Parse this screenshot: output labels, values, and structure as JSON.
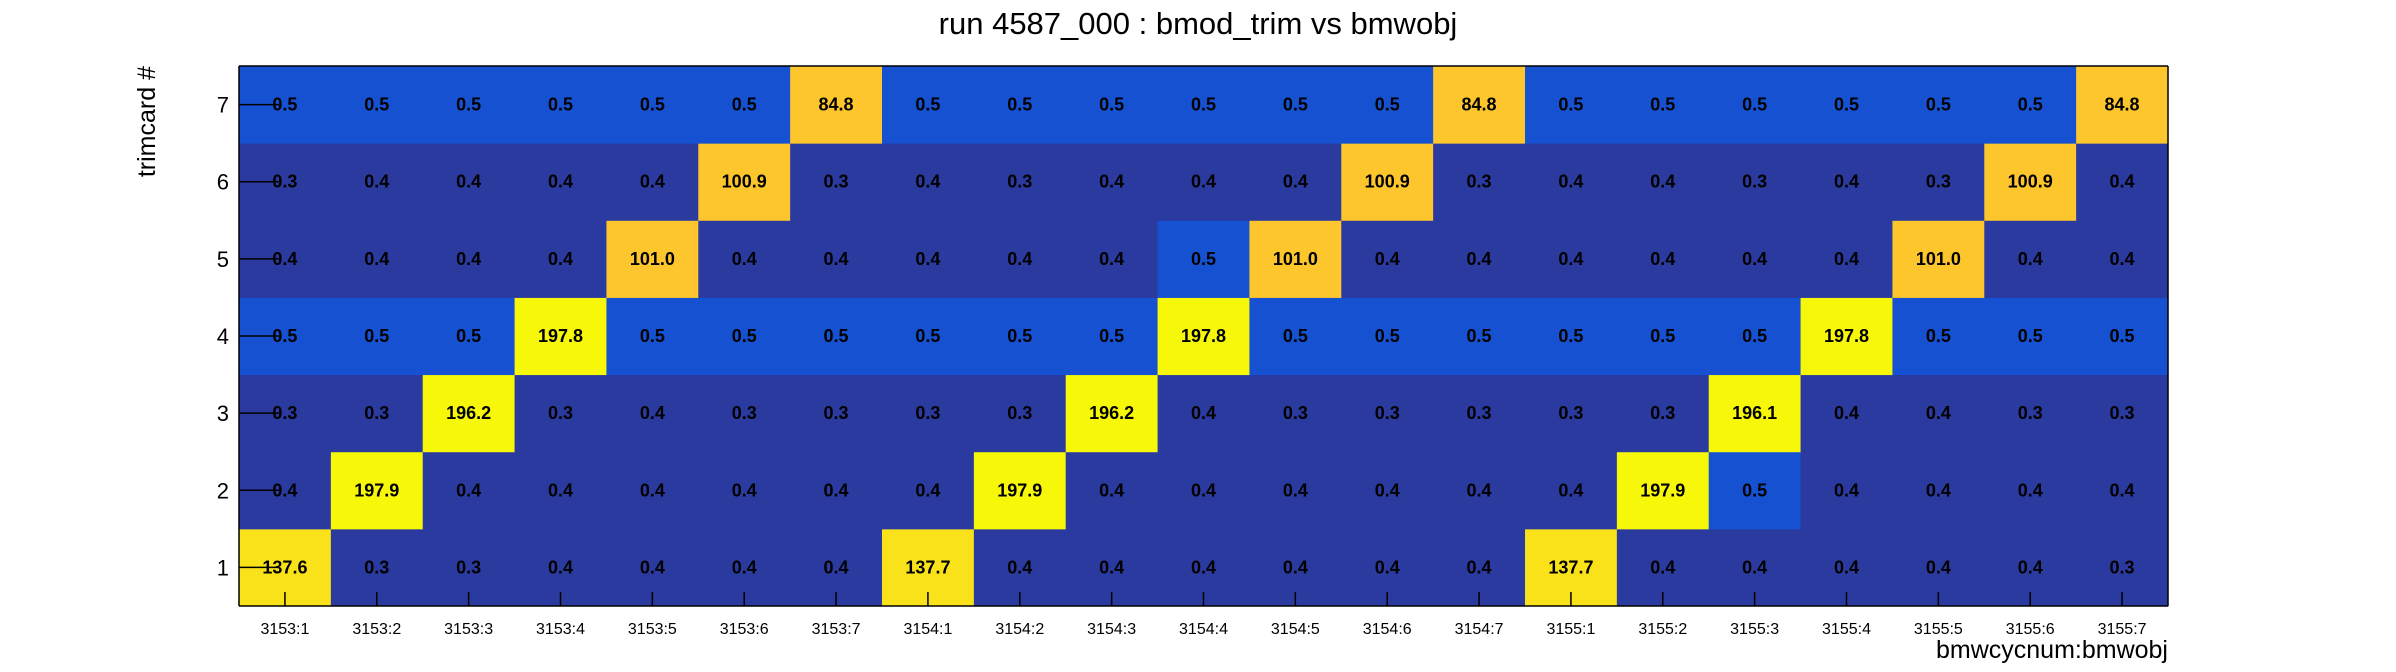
{
  "chart_data": {
    "type": "heatmap",
    "title": "run 4587_000 : bmod_trim vs bmwobj",
    "xlabel": "bmwcycnum:bmwobj",
    "ylabel": "trimcard #",
    "x_categories": [
      "3153:1",
      "3153:2",
      "3153:3",
      "3153:4",
      "3153:5",
      "3153:6",
      "3153:7",
      "3154:1",
      "3154:2",
      "3154:3",
      "3154:4",
      "3154:5",
      "3154:6",
      "3154:7",
      "3155:1",
      "3155:2",
      "3155:3",
      "3155:4",
      "3155:5",
      "3155:6",
      "3155:7"
    ],
    "y_categories": [
      "1",
      "2",
      "3",
      "4",
      "5",
      "6",
      "7"
    ],
    "values": [
      [
        "137.6",
        "0.3",
        "0.3",
        "0.4",
        "0.4",
        "0.4",
        "0.4",
        "137.7",
        "0.4",
        "0.4",
        "0.4",
        "0.4",
        "0.4",
        "0.4",
        "137.7",
        "0.4",
        "0.4",
        "0.4",
        "0.4",
        "0.4",
        "0.3"
      ],
      [
        "0.4",
        "197.9",
        "0.4",
        "0.4",
        "0.4",
        "0.4",
        "0.4",
        "0.4",
        "197.9",
        "0.4",
        "0.4",
        "0.4",
        "0.4",
        "0.4",
        "0.4",
        "197.9",
        "0.5",
        "0.4",
        "0.4",
        "0.4",
        "0.4"
      ],
      [
        "0.3",
        "0.3",
        "196.2",
        "0.3",
        "0.4",
        "0.3",
        "0.3",
        "0.3",
        "0.3",
        "196.2",
        "0.4",
        "0.3",
        "0.3",
        "0.3",
        "0.3",
        "0.3",
        "196.1",
        "0.4",
        "0.4",
        "0.3",
        "0.3"
      ],
      [
        "0.5",
        "0.5",
        "0.5",
        "197.8",
        "0.5",
        "0.5",
        "0.5",
        "0.5",
        "0.5",
        "0.5",
        "197.8",
        "0.5",
        "0.5",
        "0.5",
        "0.5",
        "0.5",
        "0.5",
        "197.8",
        "0.5",
        "0.5",
        "0.5"
      ],
      [
        "0.4",
        "0.4",
        "0.4",
        "0.4",
        "101.0",
        "0.4",
        "0.4",
        "0.4",
        "0.4",
        "0.4",
        "0.5",
        "101.0",
        "0.4",
        "0.4",
        "0.4",
        "0.4",
        "0.4",
        "0.4",
        "101.0",
        "0.4",
        "0.4"
      ],
      [
        "0.3",
        "0.4",
        "0.4",
        "0.4",
        "0.4",
        "100.9",
        "0.3",
        "0.4",
        "0.3",
        "0.4",
        "0.4",
        "0.4",
        "100.9",
        "0.3",
        "0.4",
        "0.4",
        "0.3",
        "0.4",
        "0.3",
        "100.9",
        "0.4"
      ],
      [
        "0.5",
        "0.5",
        "0.5",
        "0.5",
        "0.5",
        "0.5",
        "84.8",
        "0.5",
        "0.5",
        "0.5",
        "0.5",
        "0.5",
        "0.5",
        "84.8",
        "0.5",
        "0.5",
        "0.5",
        "0.5",
        "0.5",
        "0.5",
        "84.8"
      ]
    ],
    "colorscale": {
      "dark_blue": "#2b3a9e",
      "blue": "#1651d2",
      "orange_yellow": "#fcc62c",
      "yellow": "#f7f70a"
    },
    "grid": false
  }
}
